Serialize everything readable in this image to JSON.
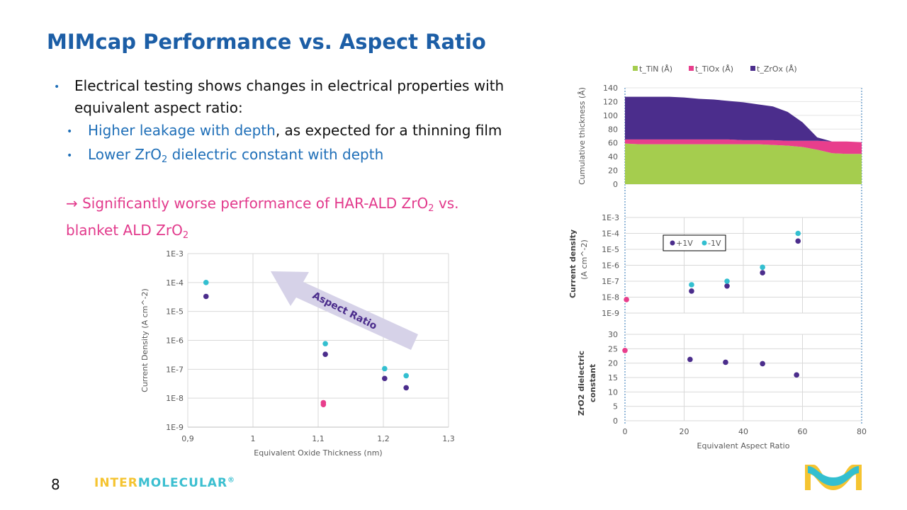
{
  "title": "MIMcap Performance vs. Aspect Ratio",
  "bullets": {
    "main_line1": "Electrical testing shows changes in electrical properties with",
    "main_line2": "equivalent aspect ratio:",
    "sub1_highlight": "Higher leakage with depth",
    "sub1_rest": ", as expected for a thinning film",
    "sub2_pre": "Lower ZrO",
    "sub2_sub": "2",
    "sub2_post": " dielectric constant with depth",
    "conclusion_a": "→ Significantly worse performance of HAR-ALD ZrO",
    "conclusion_sub1": "2",
    "conclusion_b": " vs.",
    "conclusion_c": "blanket ALD ZrO",
    "conclusion_sub2": "2"
  },
  "footer": {
    "page_number": "8",
    "logo_part1": "INTER",
    "logo_part2": "MOLECULAR",
    "logo_reg": "®",
    "logo_part1_color": "#f5c431",
    "logo_part2_color": "#3bbfd0"
  },
  "colors": {
    "title": "#1c5ea6",
    "purple": "#4b2d8c",
    "cyan": "#33bfd0",
    "pink": "#e83e8c",
    "green": "#a5cd4e",
    "arrow": "#d6d2e8"
  },
  "chart_data": [
    {
      "type": "scatter",
      "xlabel": "Equivalent Oxide Thickness (nm)",
      "ylabel": "Current Density (A cm^-2)",
      "xlim": [
        0.9,
        1.3
      ],
      "xticks": [
        "0,9",
        "1",
        "1,1",
        "1,2",
        "1,3"
      ],
      "ylim": [
        1e-09,
        0.001
      ],
      "yscale": "log",
      "yticks": [
        "1E-3",
        "1E-4",
        "1E-5",
        "1E-6",
        "1E-7",
        "1E-8",
        "1E-9"
      ],
      "grid": true,
      "annotation": "Aspect Ratio",
      "series": [
        {
          "color": "#33bfd0",
          "points": [
            [
              0.928,
              0.0001
            ],
            [
              1.111,
              7.7e-07
            ],
            [
              1.202,
              1.05e-07
            ],
            [
              1.235,
              6e-08
            ]
          ]
        },
        {
          "color": "#4b2d8c",
          "points": [
            [
              0.928,
              3.3e-05
            ],
            [
              1.111,
              3.3e-07
            ],
            [
              1.202,
              4.8e-08
            ],
            [
              1.235,
              2.3e-08
            ]
          ]
        },
        {
          "color": "#e83e8c",
          "points": [
            [
              1.108,
              7e-09
            ],
            [
              1.108,
              6e-09
            ]
          ]
        }
      ]
    },
    {
      "type": "area",
      "stacked": true,
      "ylabel": "Cumulative thickness (Å)",
      "ylim": [
        0,
        140
      ],
      "yticks": [
        "0",
        "20",
        "40",
        "60",
        "80",
        "100",
        "120",
        "140"
      ],
      "xlim": [
        0,
        80
      ],
      "legend_position": "top",
      "x": [
        0,
        5,
        10,
        15,
        20,
        25,
        30,
        35,
        40,
        45,
        50,
        55,
        60,
        65,
        70,
        75,
        80
      ],
      "series": [
        {
          "name": "t_TiN (Å)",
          "color": "#a5cd4e",
          "values": [
            59,
            58,
            58,
            58,
            58,
            58,
            58,
            58,
            58,
            58,
            57,
            56,
            54,
            50,
            45,
            44,
            44
          ]
        },
        {
          "name": "t_TiOx (Å)",
          "color": "#e83e8c",
          "values": [
            6,
            7,
            7,
            7,
            7,
            7,
            7,
            7,
            6,
            6,
            7,
            7,
            9,
            13,
            17,
            18,
            17
          ]
        },
        {
          "name": "t_ZrOx (Å)",
          "color": "#4b2d8c",
          "values": [
            62,
            62,
            62,
            62,
            61,
            59,
            58,
            56,
            55,
            52,
            49,
            42,
            27,
            5,
            0,
            0,
            0
          ]
        }
      ]
    },
    {
      "type": "scatter",
      "ylabel_bold": "Current density",
      "ylabel_unit": "(A cm^-2)",
      "xlim": [
        0,
        80
      ],
      "ylim": [
        1e-09,
        0.001
      ],
      "yscale": "log",
      "yticks": [
        "1E-3",
        "1E-4",
        "1E-5",
        "1E-6",
        "1E-7",
        "1E-8",
        "1E-9"
      ],
      "legend_position": "top-left",
      "series": [
        {
          "name": "+1V",
          "color": "#4b2d8c",
          "points": [
            [
              22.5,
              2.4e-08
            ],
            [
              34.5,
              5e-08
            ],
            [
              46.5,
              3.4e-07
            ],
            [
              58.5,
              3.3e-05
            ]
          ]
        },
        {
          "name": "-1V",
          "color": "#33bfd0",
          "points": [
            [
              22.5,
              6e-08
            ],
            [
              34.5,
              1e-07
            ],
            [
              46.5,
              7.5e-07
            ],
            [
              58.5,
              0.0001
            ]
          ]
        },
        {
          "color": "#e83e8c",
          "points": [
            [
              0.5,
              7e-09
            ]
          ]
        }
      ]
    },
    {
      "type": "scatter",
      "ylabel_line1": "ZrO2 dielectric",
      "ylabel_line2": "constant",
      "xlabel": "Equivalent Aspect Ratio",
      "xlim": [
        0,
        80
      ],
      "xticks": [
        "0",
        "20",
        "40",
        "60",
        "80"
      ],
      "ylim": [
        0,
        30
      ],
      "yticks": [
        "0",
        "5",
        "10",
        "15",
        "20",
        "25",
        "30"
      ],
      "series": [
        {
          "color": "#4b2d8c",
          "points": [
            [
              22,
              21.3
            ],
            [
              34,
              20.3
            ],
            [
              46.5,
              19.8
            ],
            [
              58,
              15.9
            ]
          ]
        },
        {
          "color": "#e83e8c",
          "points": [
            [
              0,
              24.4
            ]
          ]
        }
      ]
    }
  ]
}
